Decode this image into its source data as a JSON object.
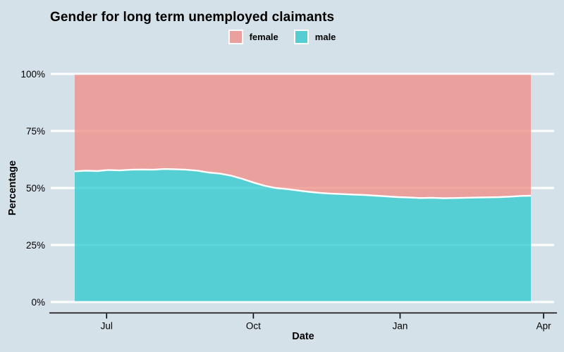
{
  "title": "Gender for long term unemployed claimants",
  "legend": {
    "items": [
      {
        "label": "female",
        "swatch_color": "#e9a09e"
      },
      {
        "label": "male",
        "swatch_color": "#55ced3"
      }
    ]
  },
  "colors": {
    "background": "#d4e1e9",
    "female_area": "#ef8e89",
    "male_area": "#31c9cd",
    "female_legend": "#e9a09e",
    "male_legend": "#55ced3",
    "area_fill_opacity": 0.78,
    "gridline": "#ffffff",
    "area_outline": "#ffffff",
    "axis_line": "#000000",
    "text": "#000000"
  },
  "chart_data": {
    "type": "area",
    "stacked": "100%",
    "title": "Gender for long term unemployed claimants",
    "xlabel": "Date",
    "ylabel": "Percentage",
    "legend_position": "top-center",
    "grid": "horizontal-white-lines",
    "x_axis": {
      "tick_labels": [
        "Jul",
        "Oct",
        "Jan",
        "Apr"
      ],
      "tick_days": [
        20,
        112,
        204,
        294
      ],
      "data_domain_days": [
        0,
        286
      ],
      "note": "days measured from first plotted observation (mid-June) through late March"
    },
    "y_axis": {
      "tick_labels": [
        "0%",
        "25%",
        "50%",
        "75%",
        "100%"
      ],
      "tick_values": [
        0,
        25,
        50,
        75,
        100
      ],
      "range": [
        0,
        100
      ]
    },
    "days": [
      0,
      7,
      14,
      21,
      28,
      35,
      42,
      49,
      56,
      63,
      70,
      77,
      84,
      91,
      98,
      105,
      112,
      119,
      126,
      133,
      140,
      147,
      154,
      161,
      168,
      175,
      182,
      189,
      196,
      203,
      210,
      217,
      224,
      231,
      238,
      245,
      252,
      259,
      266,
      273,
      280,
      286
    ],
    "series": [
      {
        "name": "male",
        "color": "#55ced3",
        "values": [
          57.3,
          57.6,
          57.4,
          57.9,
          57.7,
          58.0,
          58.1,
          58.0,
          58.3,
          58.2,
          58.0,
          57.6,
          56.8,
          56.3,
          55.4,
          54.0,
          52.4,
          51.0,
          50.0,
          49.5,
          48.9,
          48.3,
          47.8,
          47.5,
          47.3,
          47.1,
          46.9,
          46.6,
          46.3,
          46.0,
          45.8,
          45.6,
          45.7,
          45.5,
          45.6,
          45.7,
          45.8,
          45.9,
          46.0,
          46.2,
          46.5,
          46.6
        ]
      },
      {
        "name": "female",
        "color": "#e9a09e",
        "values": [
          42.7,
          42.4,
          42.6,
          42.1,
          42.3,
          42.0,
          41.9,
          42.0,
          41.7,
          41.8,
          42.0,
          42.4,
          43.2,
          43.7,
          44.6,
          46.0,
          47.6,
          49.0,
          50.0,
          50.5,
          51.1,
          51.7,
          52.2,
          52.5,
          52.7,
          52.9,
          53.1,
          53.4,
          53.7,
          54.0,
          54.2,
          54.4,
          54.3,
          54.5,
          54.4,
          54.3,
          54.2,
          54.1,
          54.0,
          53.8,
          53.5,
          53.4
        ]
      }
    ]
  }
}
